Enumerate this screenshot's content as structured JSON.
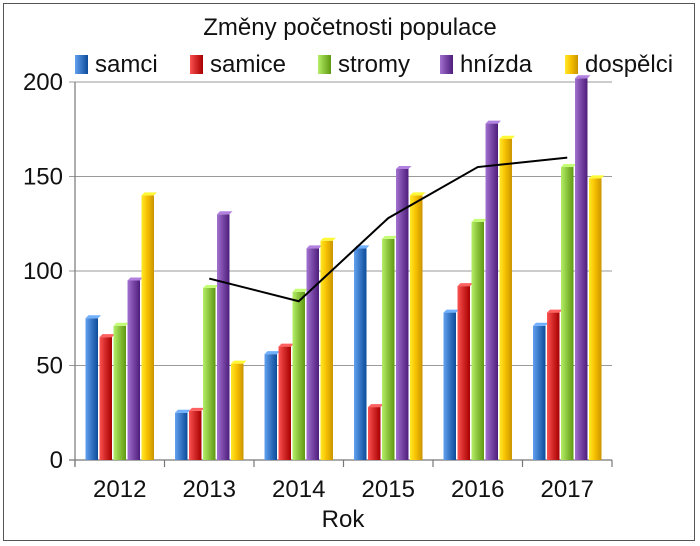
{
  "chart_data": {
    "type": "bar",
    "title": "Změny početnosti populace",
    "xlabel": "Rok",
    "ylabel": "",
    "categories": [
      "2012",
      "2013",
      "2014",
      "2015",
      "2016",
      "2017"
    ],
    "ylim": [
      0,
      200
    ],
    "yticks": [
      0,
      50,
      100,
      150,
      200
    ],
    "grid": true,
    "legend_position": "top",
    "series": [
      {
        "name": "samci",
        "color": "#3A78C8",
        "values": [
          75,
          25,
          56,
          112,
          78,
          71
        ]
      },
      {
        "name": "samice",
        "color": "#D42A2A",
        "values": [
          65,
          26,
          60,
          28,
          92,
          78
        ]
      },
      {
        "name": "stromy",
        "color": "#8DC63F",
        "values": [
          71,
          91,
          89,
          117,
          126,
          155
        ]
      },
      {
        "name": "hnízda",
        "color": "#7B4AA8",
        "values": [
          95,
          130,
          112,
          154,
          178,
          202
        ]
      },
      {
        "name": "dospělci",
        "color": "#F7C100",
        "values": [
          140,
          51,
          116,
          140,
          170,
          149
        ]
      }
    ],
    "trend_line": {
      "type": "line",
      "color": "#000000",
      "points": [
        {
          "x": "2013",
          "y": 96
        },
        {
          "x": "2014",
          "y": 84
        },
        {
          "x": "2015",
          "y": 128
        },
        {
          "x": "2016",
          "y": 155
        },
        {
          "x": "2017",
          "y": 160
        }
      ]
    }
  }
}
